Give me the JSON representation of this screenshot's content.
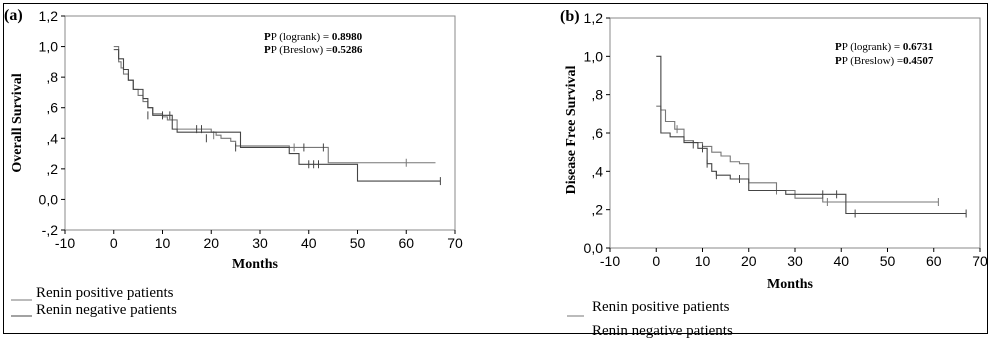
{
  "chart_data": [
    {
      "type": "line",
      "panel": "(a)",
      "xlabel": "Months",
      "ylabel": "Overall Survival",
      "xlim": [
        -10,
        70
      ],
      "ylim": [
        -0.2,
        1.2
      ],
      "xticks": [
        "-10",
        "0",
        "10",
        "20",
        "30",
        "40",
        "50",
        "60",
        "70"
      ],
      "yticks": [
        "-,2",
        "0,0",
        ",2",
        ",4",
        ",6",
        ",8",
        "1,0",
        "1,2"
      ],
      "stats": [
        {
          "label": "P (logrank) = ",
          "value": "0.8980"
        },
        {
          "label": "P (Breslow) =",
          "value": "0.5286"
        }
      ],
      "series": [
        {
          "name": "Renin positive patients",
          "color": "#777777",
          "x": [
            0,
            1,
            1.5,
            2,
            3,
            4,
            5,
            6,
            7,
            8,
            9,
            10,
            11,
            13,
            15,
            20,
            21,
            22,
            24,
            25,
            36,
            44,
            66
          ],
          "y": [
            1.0,
            0.9,
            0.86,
            0.82,
            0.78,
            0.72,
            0.68,
            0.64,
            0.6,
            0.56,
            0.56,
            0.54,
            0.52,
            0.46,
            0.46,
            0.44,
            0.42,
            0.4,
            0.38,
            0.35,
            0.34,
            0.24,
            0.24
          ],
          "censored": [
            [
              20.5,
              0.42
            ],
            [
              37,
              0.34
            ],
            [
              60,
              0.24
            ]
          ]
        },
        {
          "name": "Renin negative patients",
          "color": "#444444",
          "x": [
            0,
            1,
            2,
            3,
            4,
            6,
            7,
            8,
            12,
            13,
            14,
            26,
            36,
            38,
            44,
            50,
            67
          ],
          "y": [
            0.98,
            0.92,
            0.85,
            0.78,
            0.72,
            0.66,
            0.6,
            0.55,
            0.46,
            0.44,
            0.44,
            0.34,
            0.3,
            0.23,
            0.23,
            0.12,
            0.12
          ],
          "censored": [
            [
              7,
              0.55
            ],
            [
              10,
              0.55
            ],
            [
              11.5,
              0.55
            ],
            [
              17,
              0.46
            ],
            [
              18,
              0.46
            ],
            [
              19,
              0.4
            ],
            [
              25,
              0.34
            ],
            [
              39,
              0.34
            ],
            [
              40,
              0.23
            ],
            [
              41,
              0.23
            ],
            [
              42,
              0.23
            ],
            [
              43,
              0.34
            ],
            [
              67,
              0.12
            ]
          ]
        }
      ]
    },
    {
      "type": "line",
      "panel": "(b)",
      "xlabel": "Months",
      "ylabel": "Disease Free Survival",
      "xlim": [
        -10,
        70
      ],
      "ylim": [
        0.0,
        1.2
      ],
      "xticks": [
        "-10",
        "0",
        "10",
        "20",
        "30",
        "40",
        "50",
        "60",
        "70"
      ],
      "yticks": [
        "0,0",
        ",2",
        ",4",
        ",6",
        ",8",
        "1,0",
        "1,2"
      ],
      "stats": [
        {
          "label": "P (logrank) = ",
          "value": "0.6731"
        },
        {
          "label": "P (Breslow) =",
          "value": "0.4507"
        }
      ],
      "series": [
        {
          "name": "Renin positive patients",
          "color": "#777777",
          "x": [
            0,
            1,
            2,
            4,
            6,
            8,
            10,
            12,
            14,
            16,
            18,
            20,
            26,
            30,
            36,
            61
          ],
          "y": [
            0.74,
            0.72,
            0.66,
            0.62,
            0.56,
            0.55,
            0.53,
            0.5,
            0.48,
            0.45,
            0.44,
            0.34,
            0.3,
            0.26,
            0.24,
            0.24
          ],
          "censored": [
            [
              4.5,
              0.62
            ],
            [
              26,
              0.3
            ],
            [
              37,
              0.24
            ],
            [
              61,
              0.24
            ]
          ]
        },
        {
          "name": "Renin negative patients",
          "color": "#444444",
          "x": [
            0,
            1,
            3,
            6,
            9,
            11,
            12,
            13,
            14,
            16,
            20,
            28,
            41,
            67
          ],
          "y": [
            1.0,
            0.6,
            0.58,
            0.55,
            0.52,
            0.44,
            0.4,
            0.38,
            0.38,
            0.36,
            0.3,
            0.28,
            0.18,
            0.18
          ],
          "censored": [
            [
              8,
              0.54
            ],
            [
              10,
              0.52
            ],
            [
              11,
              0.44
            ],
            [
              13,
              0.38
            ],
            [
              18,
              0.36
            ],
            [
              36,
              0.28
            ],
            [
              39,
              0.28
            ],
            [
              43,
              0.18
            ],
            [
              67,
              0.18
            ]
          ]
        }
      ]
    }
  ],
  "legend_a": [
    "Renin positive patients",
    "Renin negative patients"
  ],
  "legend_b": [
    "Renin positive patients",
    "Renin negative patients"
  ]
}
